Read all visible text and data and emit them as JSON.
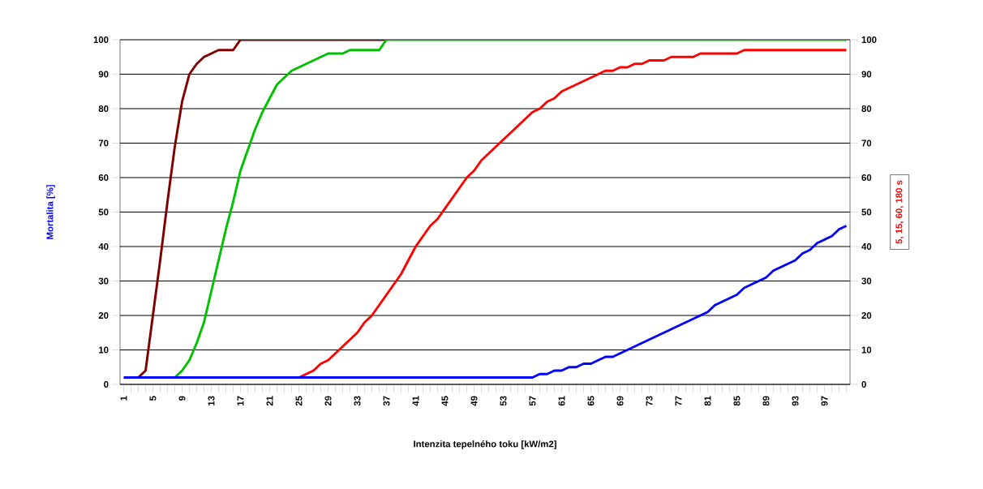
{
  "chart_data": {
    "type": "line",
    "xlabel": "Intenzita tepelného toku [kW/m2]",
    "ylabel": "Mortalita [%]",
    "y2label": "5, 15, 60, 180 s",
    "categories": [
      "1",
      null,
      null,
      null,
      "5",
      null,
      null,
      null,
      "9",
      null,
      null,
      null,
      "13",
      null,
      null,
      null,
      "17",
      null,
      null,
      null,
      "21",
      null,
      null,
      null,
      "25",
      null,
      null,
      null,
      "29",
      null,
      null,
      null,
      "33",
      null,
      null,
      null,
      "37",
      null,
      null,
      null,
      "41",
      null,
      null,
      null,
      "45",
      null,
      null,
      null,
      "49",
      null,
      null,
      null,
      "53",
      null,
      null,
      null,
      "57",
      null,
      null,
      null,
      "61",
      null,
      null,
      null,
      "65",
      null,
      null,
      null,
      "69",
      null,
      null,
      null,
      "73",
      null,
      null,
      null,
      "77",
      null,
      null,
      null,
      "81",
      null,
      null,
      null,
      "85",
      null,
      null,
      null,
      "89",
      null,
      null,
      null,
      "93",
      null,
      null,
      null,
      "97",
      null,
      null,
      null
    ],
    "ylim": [
      0,
      100
    ],
    "yticks": [
      0,
      10,
      20,
      30,
      40,
      50,
      60,
      70,
      80,
      90,
      100
    ],
    "y2lim": [
      0,
      100
    ],
    "y2ticks": [
      0,
      10,
      20,
      30,
      40,
      50,
      60,
      70,
      80,
      90,
      100
    ],
    "grid": "y",
    "marker": "none",
    "line_style": "solid",
    "series": [
      {
        "color": "#800000",
        "values": [
          null,
          null,
          2,
          4,
          20,
          36,
          53,
          69,
          82,
          90,
          93,
          95,
          96,
          97,
          97,
          97,
          100,
          100,
          100,
          100,
          100,
          100,
          100,
          100,
          100,
          100,
          100,
          100,
          100,
          100,
          100,
          100,
          100,
          100,
          100,
          100,
          100,
          null,
          null,
          null,
          null,
          null,
          null,
          null,
          null,
          null,
          null,
          null,
          null,
          null,
          null,
          null,
          null,
          null,
          null,
          null,
          null,
          null,
          null,
          null,
          null,
          null,
          null,
          null,
          null,
          null,
          null,
          null,
          null,
          null,
          null,
          null,
          null,
          null,
          null,
          null,
          null,
          null,
          null,
          null,
          null,
          null,
          null,
          null,
          null,
          null,
          null,
          null,
          null,
          null,
          null,
          null,
          null,
          null,
          null,
          null,
          null,
          null,
          null,
          null
        ]
      },
      {
        "color": "#00c000",
        "values": [
          null,
          null,
          null,
          null,
          null,
          null,
          null,
          2,
          4,
          7,
          12,
          18,
          27,
          36,
          45,
          53,
          62,
          68,
          74,
          79,
          83,
          87,
          89,
          91,
          92,
          93,
          94,
          95,
          96,
          96,
          96,
          97,
          97,
          97,
          97,
          97,
          100,
          100,
          100,
          100,
          100,
          100,
          100,
          100,
          100,
          100,
          100,
          100,
          100,
          100,
          100,
          100,
          100,
          100,
          100,
          100,
          100,
          100,
          100,
          100,
          100,
          100,
          100,
          100,
          100,
          100,
          100,
          100,
          100,
          100,
          100,
          100,
          100,
          100,
          100,
          100,
          100,
          100,
          100,
          100,
          100,
          100,
          100,
          100,
          100,
          100,
          100,
          100,
          100,
          100,
          100,
          100,
          100,
          100,
          100,
          100,
          100,
          100,
          100,
          100
        ]
      },
      {
        "color": "#ff0000",
        "values": [
          null,
          null,
          null,
          null,
          null,
          null,
          null,
          null,
          null,
          null,
          null,
          null,
          null,
          null,
          null,
          null,
          null,
          null,
          null,
          null,
          null,
          null,
          null,
          null,
          2,
          3,
          4,
          6,
          7,
          9,
          11,
          13,
          15,
          18,
          20,
          23,
          26,
          29,
          32,
          36,
          40,
          43,
          46,
          48,
          51,
          54,
          57,
          60,
          62,
          65,
          67,
          69,
          71,
          73,
          75,
          77,
          79,
          80,
          82,
          83,
          85,
          86,
          87,
          88,
          89,
          90,
          91,
          91,
          92,
          92,
          93,
          93,
          94,
          94,
          94,
          95,
          95,
          95,
          95,
          96,
          96,
          96,
          96,
          96,
          96,
          97,
          97,
          97,
          97,
          97,
          97,
          97,
          97,
          97,
          97,
          97,
          97,
          97,
          97,
          97
        ]
      },
      {
        "color": "#0000ff",
        "values": [
          2,
          2,
          2,
          2,
          2,
          2,
          2,
          2,
          2,
          2,
          2,
          2,
          2,
          2,
          2,
          2,
          2,
          2,
          2,
          2,
          2,
          2,
          2,
          2,
          2,
          2,
          2,
          2,
          2,
          2,
          2,
          2,
          2,
          2,
          2,
          2,
          2,
          2,
          2,
          2,
          2,
          2,
          2,
          2,
          2,
          2,
          2,
          2,
          2,
          2,
          2,
          2,
          2,
          2,
          2,
          2,
          2,
          3,
          3,
          4,
          4,
          5,
          5,
          6,
          6,
          7,
          8,
          8,
          9,
          10,
          11,
          12,
          13,
          14,
          15,
          16,
          17,
          18,
          19,
          20,
          21,
          23,
          24,
          25,
          26,
          28,
          29,
          30,
          31,
          33,
          34,
          35,
          36,
          38,
          39,
          41,
          42,
          43,
          45,
          46
        ]
      }
    ]
  }
}
